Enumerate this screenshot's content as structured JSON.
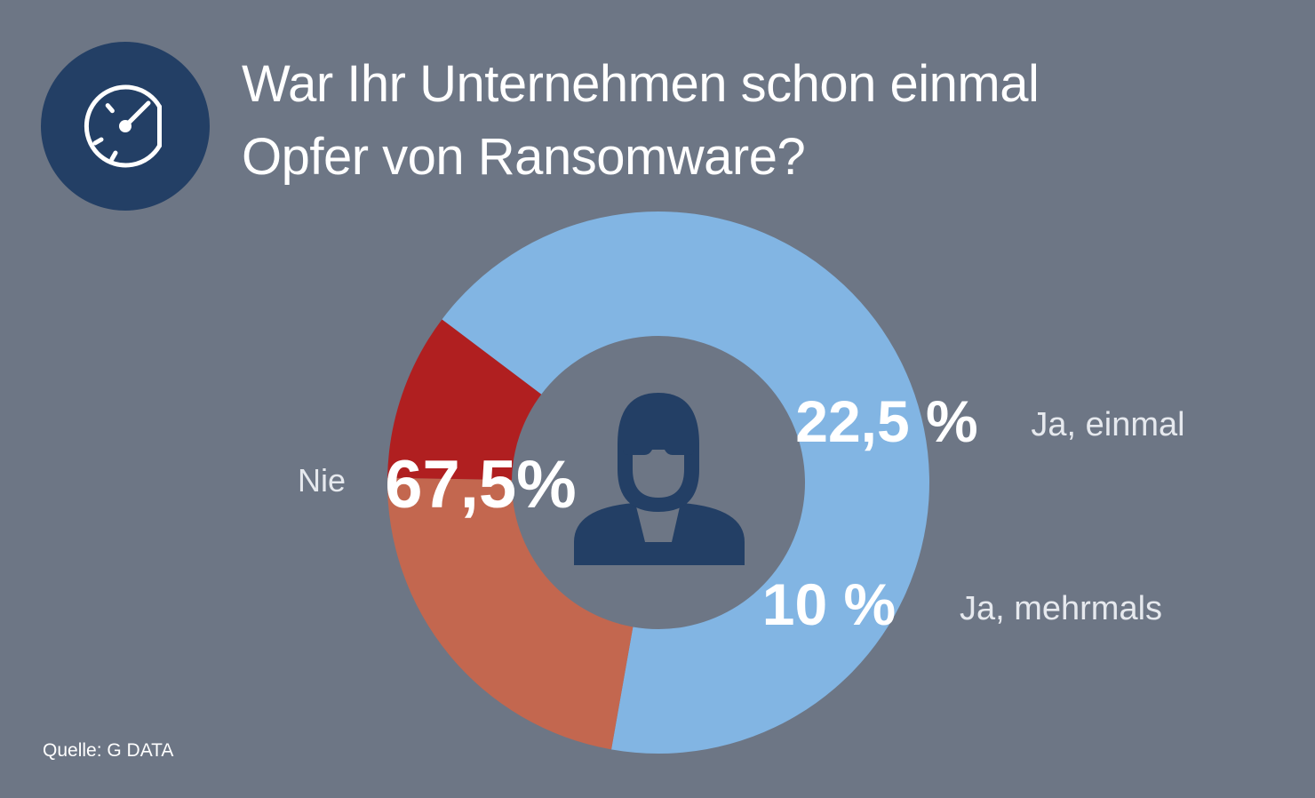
{
  "header": {
    "icon": "speedometer-icon",
    "title_line1": "War Ihr Unternehmen schon einmal",
    "title_line2": "Opfer von Ransomware?"
  },
  "chart_data": {
    "type": "pie",
    "style": "donut",
    "title": "War Ihr Unternehmen schon einmal Opfer von Ransomware?",
    "center_icon": "hacker-icon",
    "slices": [
      {
        "label": "Nie",
        "value": 67.5,
        "display": "67,5%",
        "color": "#82b5e3"
      },
      {
        "label": "Ja, einmal",
        "value": 22.5,
        "display": "22,5 %",
        "color": "#c3674f"
      },
      {
        "label": "Ja, mehrmals",
        "value": 10,
        "display": "10 %",
        "color": "#b01f20"
      }
    ]
  },
  "footer": {
    "source": "Quelle: G DATA"
  },
  "colors": {
    "background": "#6d7685",
    "navy": "#233f65",
    "text": "#ffffff",
    "label_text": "#e6e9ee"
  }
}
